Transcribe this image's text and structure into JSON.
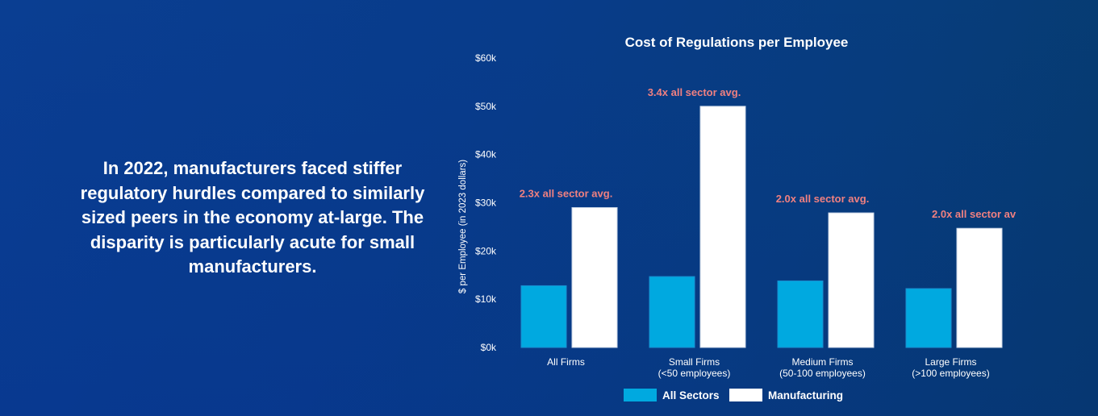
{
  "intro_text": "In 2022, manufacturers faced stiffer regulatory hurdles compared to similarly sized peers in the economy at-large. The disparity is particularly acute for small manufacturers.",
  "chart_data": {
    "type": "bar",
    "title": "Cost of Regulations per Employee",
    "ylabel": "$ per Employee (in 2023 dollars)",
    "xlabel": "",
    "ylim": [
      0,
      60000
    ],
    "yticks": [
      0,
      10000,
      20000,
      30000,
      40000,
      50000,
      60000
    ],
    "ytick_labels": [
      "$0k",
      "$10k",
      "$20k",
      "$30k",
      "$40k",
      "$50k",
      "$60k"
    ],
    "categories": [
      [
        "All Firms"
      ],
      [
        "Small Firms",
        "(<50 employees)"
      ],
      [
        "Medium Firms",
        "(50-100 employees)"
      ],
      [
        "Large Firms",
        "(>100 employees)"
      ]
    ],
    "series": [
      {
        "name": "All Sectors",
        "color": "#00a9e0",
        "values": [
          12800,
          14700,
          13800,
          12200
        ]
      },
      {
        "name": "Manufacturing",
        "color": "#ffffff",
        "values": [
          29000,
          50000,
          27900,
          24700
        ]
      }
    ],
    "annotations": [
      "2.3x all sector avg.",
      "3.4x all sector avg.",
      "2.0x all sector avg.",
      "2.0x all sector av"
    ],
    "annotation_color": "#f08080",
    "grid": false,
    "legend_position": "bottom"
  }
}
